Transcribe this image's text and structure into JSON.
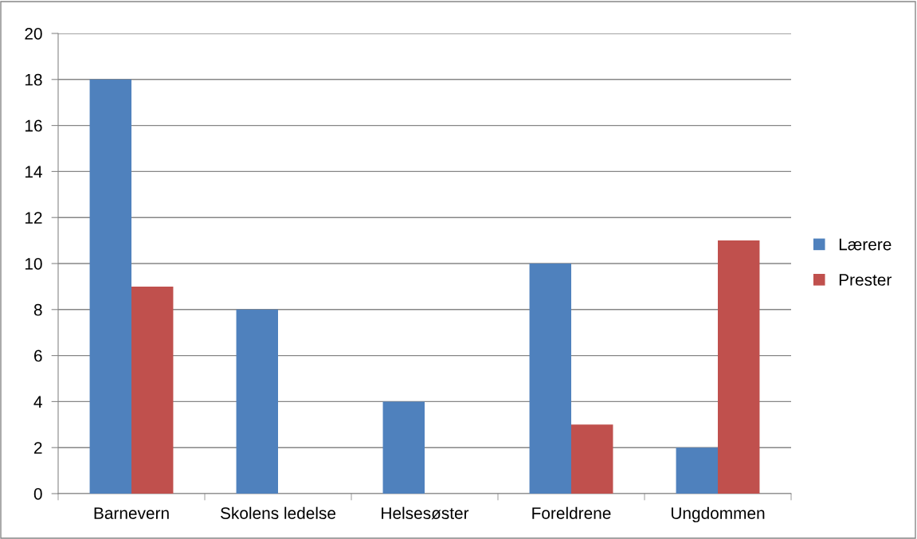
{
  "chart_data": {
    "type": "bar",
    "categories": [
      "Barnevern",
      "Skolens ledelse",
      "Helsesøster",
      "Foreldrene",
      "Ungdommen"
    ],
    "series": [
      {
        "name": "Lærere",
        "color": "#4f81bd",
        "values": [
          18,
          8,
          4,
          10,
          2
        ]
      },
      {
        "name": "Prester",
        "color": "#c0504d",
        "values": [
          9,
          0,
          0,
          3,
          11
        ]
      }
    ],
    "ylim": [
      0,
      20
    ],
    "yticks": [
      0,
      2,
      4,
      6,
      8,
      10,
      12,
      14,
      16,
      18,
      20
    ],
    "grid": "y",
    "legend": "right"
  }
}
